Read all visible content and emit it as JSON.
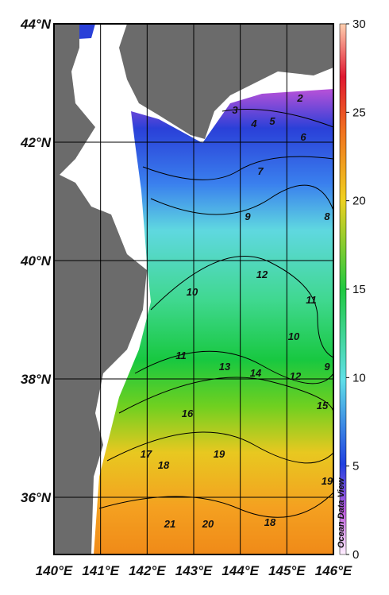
{
  "map": {
    "lat_labels": [
      "44°N",
      "42°N",
      "40°N",
      "38°N",
      "36°N"
    ],
    "lon_labels": [
      "140°E",
      "141°E",
      "142°E",
      "143°E",
      "144°E",
      "145°E",
      "146°E"
    ],
    "colorbar": {
      "lim": [
        0,
        30
      ],
      "ticks": [
        0,
        5,
        10,
        15,
        20,
        25,
        30
      ]
    },
    "contour_labels": [
      "2",
      "3",
      "4",
      "5",
      "6",
      "7",
      "8",
      "9",
      "10",
      "11",
      "12",
      "10",
      "11",
      "13",
      "14",
      "12",
      "9",
      "15",
      "16",
      "17",
      "18",
      "19",
      "19",
      "21",
      "20",
      "18"
    ],
    "credit": "Ocean Data View"
  }
}
